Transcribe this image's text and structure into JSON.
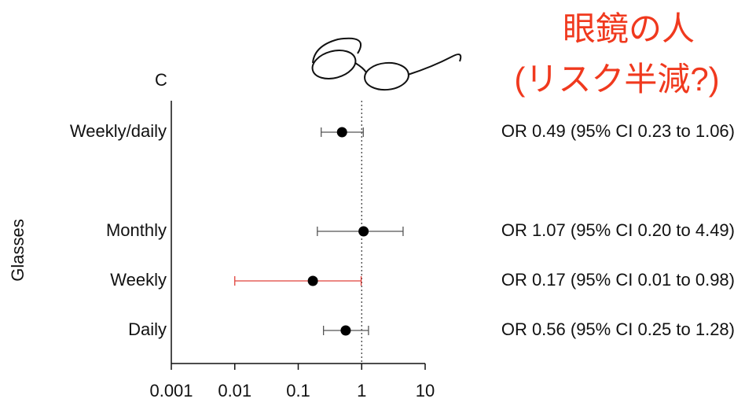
{
  "chart_data": {
    "type": "forest",
    "panel_label": "C",
    "ylabel": "Glasses",
    "annotations": [
      "眼鏡の人",
      "(リスク半減?)"
    ],
    "annotation_color": "#f0391e",
    "categories": [
      "Weekly/daily",
      null,
      "Monthly",
      "Weekly",
      "Daily"
    ],
    "values": [
      0.49,
      null,
      1.07,
      0.17,
      0.56
    ],
    "ci_low": [
      0.23,
      null,
      0.2,
      0.01,
      0.25
    ],
    "ci_high": [
      1.06,
      null,
      4.49,
      0.98,
      1.28
    ],
    "value_labels": [
      "OR 0.49 (95% CI 0.23 to 1.06)",
      null,
      "OR 1.07 (95% CI 0.20 to 4.49)",
      "OR 0.17 (95% CI 0.01 to 0.98)",
      "OR 0.56 (95% CI 0.25 to 1.28)"
    ],
    "ci_colors": [
      "#555555",
      null,
      "#555555",
      "#e0403a",
      "#555555"
    ],
    "point_color": "#000000",
    "xscale": "log",
    "xlim": [
      0.001,
      10
    ],
    "xticks": [
      0.001,
      0.01,
      0.1,
      1,
      10
    ],
    "reference_line": 1
  }
}
